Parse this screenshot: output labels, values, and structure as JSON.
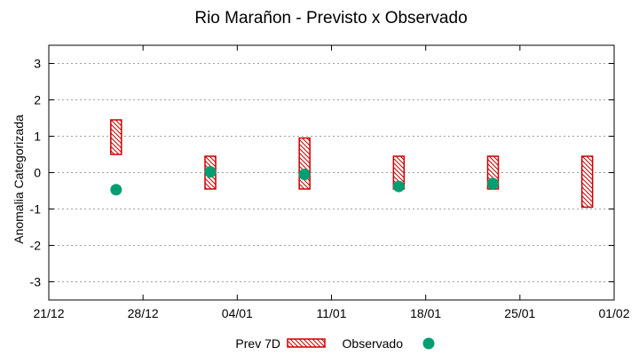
{
  "chart_data": {
    "type": "scatter",
    "title": "Rio Marañon - Previsto x Observado",
    "xlabel": "",
    "ylabel": "Anomalia Categorizada",
    "xlim_days": [
      0,
      42
    ],
    "ylim": [
      -3.5,
      3.5
    ],
    "grid": "horizontal-dashed",
    "x_ticks": [
      {
        "day": 0,
        "label": "21/12"
      },
      {
        "day": 7,
        "label": "28/12"
      },
      {
        "day": 14,
        "label": "04/01"
      },
      {
        "day": 21,
        "label": "11/01"
      },
      {
        "day": 28,
        "label": "18/01"
      },
      {
        "day": 35,
        "label": "25/01"
      },
      {
        "day": 42,
        "label": "01/02"
      }
    ],
    "y_ticks": [
      {
        "value": 3,
        "label": "3"
      },
      {
        "value": 2,
        "label": "2"
      },
      {
        "value": 1,
        "label": "1"
      },
      {
        "value": 0,
        "label": "0"
      },
      {
        "value": -1,
        "label": "-1"
      },
      {
        "value": -2,
        "label": "-2"
      },
      {
        "value": -3,
        "label": "-3"
      }
    ],
    "series": [
      {
        "name": "Prev 7D",
        "kind": "range",
        "color": "#cc0000",
        "points": [
          {
            "day": 5,
            "low": 0.5,
            "high": 1.45
          },
          {
            "day": 12,
            "low": -0.45,
            "high": 0.45
          },
          {
            "day": 19,
            "low": -0.45,
            "high": 0.95
          },
          {
            "day": 26,
            "low": -0.45,
            "high": 0.45
          },
          {
            "day": 33,
            "low": -0.45,
            "high": 0.45
          },
          {
            "day": 40,
            "low": -0.95,
            "high": 0.45
          }
        ]
      },
      {
        "name": "Observado",
        "kind": "point",
        "color": "#009e73",
        "points": [
          {
            "day": 5,
            "value": -0.47
          },
          {
            "day": 12,
            "value": 0.02
          },
          {
            "day": 19,
            "value": -0.05
          },
          {
            "day": 26,
            "value": -0.38
          },
          {
            "day": 33,
            "value": -0.3
          }
        ]
      }
    ],
    "legend": {
      "position": "bottom-center"
    }
  }
}
